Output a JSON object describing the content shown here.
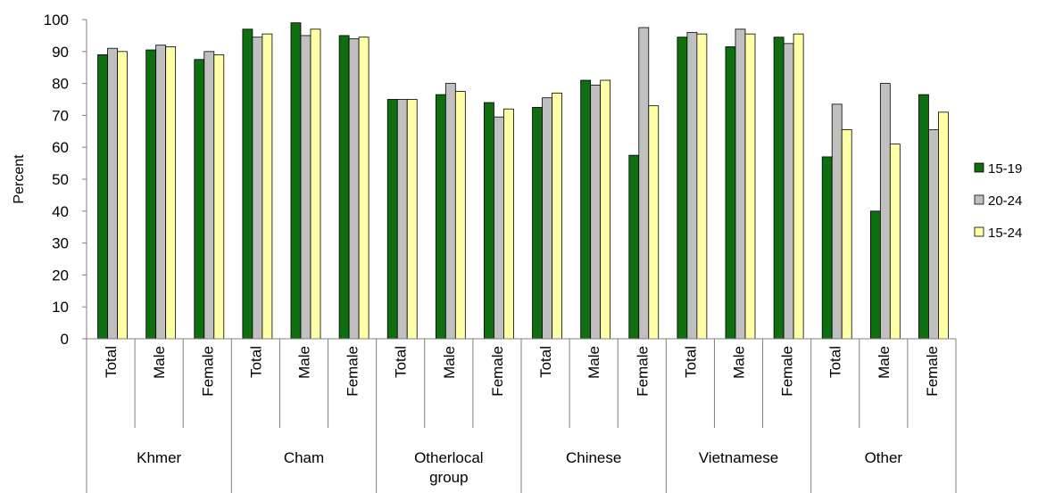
{
  "chart_data": {
    "type": "bar",
    "ylabel": "Percent",
    "ylim": [
      0,
      100
    ],
    "y_ticks": [
      0,
      10,
      20,
      30,
      40,
      50,
      60,
      70,
      80,
      90,
      100
    ],
    "grid": false,
    "legend_position": "right",
    "groups": [
      {
        "label": "Khmer",
        "categories": [
          "Total",
          "Male",
          "Female"
        ]
      },
      {
        "label": "Cham",
        "categories": [
          "Total",
          "Male",
          "Female"
        ]
      },
      {
        "label": "Otherlocal group",
        "label_lines": [
          "Otherlocal",
          "group"
        ],
        "categories": [
          "Total",
          "Male",
          "Female"
        ]
      },
      {
        "label": "Chinese",
        "categories": [
          "Total",
          "Male",
          "Female"
        ]
      },
      {
        "label": "Vietnamese",
        "categories": [
          "Total",
          "Male",
          "Female"
        ]
      },
      {
        "label": "Other",
        "categories": [
          "Total",
          "Male",
          "Female"
        ]
      }
    ],
    "series": [
      {
        "name": "15-19",
        "color": "#0f6e0f",
        "values": [
          89,
          90.5,
          87.5,
          97,
          99,
          95,
          75,
          76.5,
          74,
          72.5,
          81,
          57.5,
          94.5,
          91.5,
          94.5,
          57,
          40,
          76.5
        ]
      },
      {
        "name": "20-24",
        "color": "#c0c0c0",
        "values": [
          91,
          92,
          90,
          94.5,
          95,
          94,
          75,
          80,
          69.5,
          75.5,
          79.5,
          97.5,
          96,
          97,
          92.5,
          73.5,
          80,
          65.5
        ]
      },
      {
        "name": "15-24",
        "color": "#ffffa8",
        "values": [
          90,
          91.5,
          89,
          95.5,
          97,
          94.5,
          75,
          77.5,
          72,
          77,
          81,
          73,
          95.5,
          95.5,
          95.5,
          65.5,
          61,
          71
        ]
      }
    ]
  }
}
